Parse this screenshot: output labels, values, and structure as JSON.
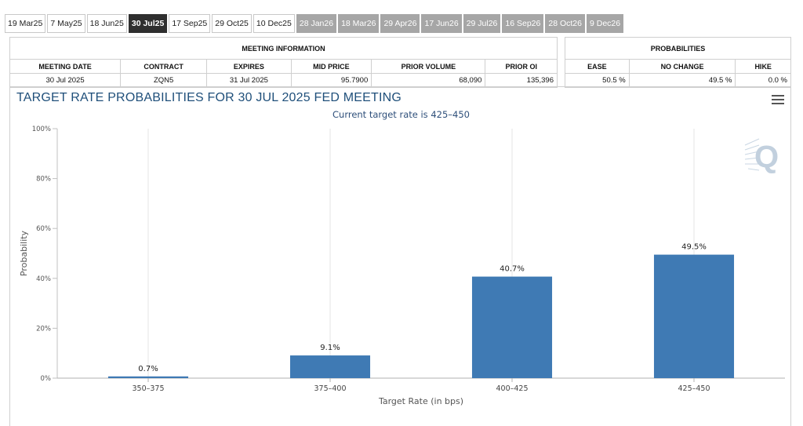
{
  "tabs": [
    {
      "label": "19 Mar25",
      "state": "normal"
    },
    {
      "label": "7 May25",
      "state": "normal"
    },
    {
      "label": "18 Jun25",
      "state": "normal"
    },
    {
      "label": "30 Jul25",
      "state": "active"
    },
    {
      "label": "17 Sep25",
      "state": "normal"
    },
    {
      "label": "29 Oct25",
      "state": "normal"
    },
    {
      "label": "10 Dec25",
      "state": "normal"
    },
    {
      "label": "28 Jan26",
      "state": "future"
    },
    {
      "label": "18 Mar26",
      "state": "future"
    },
    {
      "label": "29 Apr26",
      "state": "future"
    },
    {
      "label": "17 Jun26",
      "state": "future"
    },
    {
      "label": "29 Jul26",
      "state": "future"
    },
    {
      "label": "16 Sep26",
      "state": "future"
    },
    {
      "label": "28 Oct26",
      "state": "future"
    },
    {
      "label": "9 Dec26",
      "state": "future"
    }
  ],
  "meeting_info": {
    "heading": "MEETING INFORMATION",
    "columns": [
      "MEETING DATE",
      "CONTRACT",
      "EXPIRES",
      "MID PRICE",
      "PRIOR VOLUME",
      "PRIOR OI"
    ],
    "row": [
      "30 Jul 2025",
      "ZQN5",
      "31 Jul 2025",
      "95.7900",
      "68,090",
      "135,396"
    ]
  },
  "probabilities": {
    "heading": "PROBABILITIES",
    "columns": [
      "EASE",
      "NO CHANGE",
      "HIKE"
    ],
    "row": [
      "50.5 %",
      "49.5 %",
      "0.0 %"
    ]
  },
  "chart_data": {
    "type": "bar",
    "title": "TARGET RATE PROBABILITIES FOR 30 JUL 2025 FED MEETING",
    "subtitle": "Current target rate is 425–450",
    "xlabel": "Target Rate (in bps)",
    "ylabel": "Probability",
    "categories": [
      "350–375",
      "375–400",
      "400–425",
      "425–450"
    ],
    "values": [
      0.7,
      9.1,
      40.7,
      49.5
    ],
    "data_labels": [
      "0.7%",
      "9.1%",
      "40.7%",
      "49.5%"
    ],
    "ylim": [
      0,
      100
    ],
    "yticks": [
      0,
      20,
      40,
      60,
      80,
      100
    ],
    "ytick_labels": [
      "0%",
      "20%",
      "40%",
      "60%",
      "80%",
      "100%"
    ],
    "grid": "vertical",
    "bar_color": "#3f7ab4"
  },
  "icons": {
    "menu": "hamburger-menu-icon",
    "watermark": "q-logo-icon"
  }
}
